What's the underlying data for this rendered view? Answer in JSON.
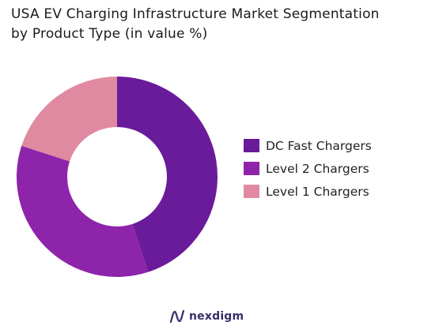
{
  "title_line1": "USA EV Charging Infrastructure Market Segmentation",
  "title_line2": "by Product Type (in value %)",
  "chart_data": {
    "type": "pie",
    "variant": "donut",
    "title": "USA EV Charging Infrastructure Market Segmentation by Product Type (in value %)",
    "legend_position": "right",
    "series": [
      {
        "name": "DC Fast Chargers",
        "value": 45,
        "color": "#6a1b9a"
      },
      {
        "name": "Level 2 Chargers",
        "value": 35,
        "color": "#8e24aa"
      },
      {
        "name": "Level 1 Chargers",
        "value": 20,
        "color": "#df8aa0"
      }
    ]
  },
  "brand": {
    "name": "nexdigm",
    "icon": "nexdigm-logo-icon"
  }
}
